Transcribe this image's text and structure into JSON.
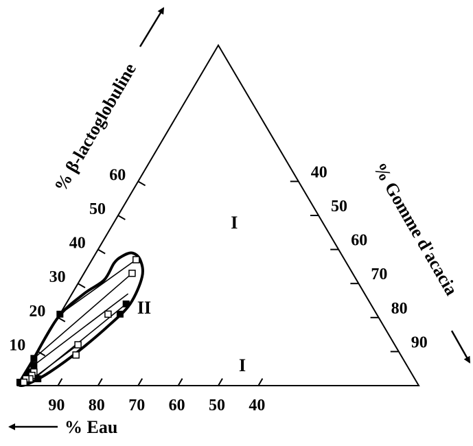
{
  "chart_data": {
    "type": "ternary",
    "axes": {
      "left": {
        "label": "% β-lactoglobuline",
        "ticks": [
          {
            "value": 10,
            "label": "10"
          },
          {
            "value": 20,
            "label": "20"
          },
          {
            "value": 30,
            "label": "30"
          },
          {
            "value": 40,
            "label": "40"
          },
          {
            "value": 50,
            "label": "50"
          },
          {
            "value": 60,
            "label": "60"
          }
        ]
      },
      "right": {
        "label": "% Gomme d'acacia",
        "ticks": [
          {
            "value": 40,
            "label": "40"
          },
          {
            "value": 50,
            "label": "50"
          },
          {
            "value": 60,
            "label": "60"
          },
          {
            "value": 70,
            "label": "70"
          },
          {
            "value": 80,
            "label": "80"
          },
          {
            "value": 90,
            "label": "90"
          }
        ]
      },
      "bottom": {
        "label": "% Eau",
        "ticks": [
          {
            "value": 90,
            "label": "90"
          },
          {
            "value": 80,
            "label": "80"
          },
          {
            "value": 70,
            "label": "70"
          },
          {
            "value": 60,
            "label": "60"
          },
          {
            "value": 50,
            "label": "50"
          },
          {
            "value": 40,
            "label": "40"
          }
        ]
      }
    },
    "regions": [
      {
        "label": "I",
        "lactoglobuline": 48,
        "gomme": 30
      },
      {
        "label": "II",
        "lactoglobuline": 23,
        "gomme": 20
      },
      {
        "label": "I",
        "lactoglobuline": 6,
        "gomme": 53
      }
    ],
    "boundary": [
      {
        "eau": 99,
        "lactoglobuline": 1,
        "gomme": 0
      },
      {
        "eau": 93,
        "lactoglobuline": 7,
        "gomme": 0
      },
      {
        "eau": 80,
        "lactoglobuline": 20,
        "gomme": 0
      },
      {
        "eau": 70,
        "lactoglobuline": 27,
        "gomme": 3
      },
      {
        "eau": 63,
        "lactoglobuline": 31,
        "gomme": 6
      },
      {
        "eau": 58,
        "lactoglobuline": 36,
        "gomme": 6
      },
      {
        "eau": 55,
        "lactoglobuline": 38,
        "gomme": 7
      },
      {
        "eau": 52,
        "lactoglobuline": 39,
        "gomme": 9
      },
      {
        "eau": 51,
        "lactoglobuline": 37,
        "gomme": 12
      },
      {
        "eau": 53,
        "lactoglobuline": 32,
        "gomme": 15
      },
      {
        "eau": 60,
        "lactoglobuline": 24,
        "gomme": 16
      },
      {
        "eau": 68,
        "lactoglobuline": 18,
        "gomme": 14
      },
      {
        "eau": 80,
        "lactoglobuline": 10,
        "gomme": 10
      },
      {
        "eau": 90,
        "lactoglobuline": 4,
        "gomme": 6
      },
      {
        "eau": 96,
        "lactoglobuline": 1,
        "gomme": 3
      },
      {
        "eau": 99,
        "lactoglobuline": 0,
        "gomme": 1
      }
    ],
    "tie_lines": [
      {
        "a": {
          "eau": 79,
          "lactoglobuline": 21,
          "gomme": 0
        },
        "b": {
          "eau": 52,
          "lactoglobuline": 37,
          "gomme": 11
        }
      },
      {
        "a": {
          "eau": 92,
          "lactoglobuline": 8,
          "gomme": 0
        },
        "b": {
          "eau": 55,
          "lactoglobuline": 33,
          "gomme": 12
        }
      },
      {
        "a": {
          "eau": 93,
          "lactoglobuline": 6,
          "gomme": 1
        },
        "b": {
          "eau": 59,
          "lactoglobuline": 27,
          "gomme": 14
        }
      },
      {
        "a": {
          "eau": 95,
          "lactoglobuline": 2,
          "gomme": 3
        },
        "b": {
          "eau": 61,
          "lactoglobuline": 24,
          "gomme": 15
        }
      },
      {
        "a": {
          "eau": 97,
          "lactoglobuline": 1,
          "gomme": 2
        },
        "b": {
          "eau": 79,
          "lactoglobuline": 12,
          "gomme": 9
        }
      },
      {
        "a": {
          "eau": 96,
          "lactoglobuline": 1,
          "gomme": 3
        },
        "b": {
          "eau": 81,
          "lactoglobuline": 9,
          "gomme": 10
        }
      }
    ],
    "points_filled": [
      {
        "eau": 79,
        "lactoglobuline": 21,
        "gomme": 0
      },
      {
        "eau": 92,
        "lactoglobuline": 8,
        "gomme": 0
      },
      {
        "eau": 93,
        "lactoglobuline": 6,
        "gomme": 1
      },
      {
        "eau": 61,
        "lactoglobuline": 24,
        "gomme": 15
      },
      {
        "eau": 64,
        "lactoglobuline": 21,
        "gomme": 15
      },
      {
        "eau": 94,
        "lactoglobuline": 2,
        "gomme": 4
      },
      {
        "eau": 95,
        "lactoglobuline": 4,
        "gomme": 1
      },
      {
        "eau": 96,
        "lactoglobuline": 3,
        "gomme": 1
      },
      {
        "eau": 97,
        "lactoglobuline": 2,
        "gomme": 1
      },
      {
        "eau": 98,
        "lactoglobuline": 1,
        "gomme": 1
      },
      {
        "eau": 99,
        "lactoglobuline": 1,
        "gomme": 0
      }
    ],
    "points_open": [
      {
        "eau": 52,
        "lactoglobuline": 37,
        "gomme": 11
      },
      {
        "eau": 55,
        "lactoglobuline": 33,
        "gomme": 12
      },
      {
        "eau": 67,
        "lactoglobuline": 21,
        "gomme": 12
      },
      {
        "eau": 79,
        "lactoglobuline": 12,
        "gomme": 9
      },
      {
        "eau": 81,
        "lactoglobuline": 9,
        "gomme": 10
      },
      {
        "eau": 94,
        "lactoglobuline": 4,
        "gomme": 2
      },
      {
        "eau": 95,
        "lactoglobuline": 3,
        "gomme": 2
      },
      {
        "eau": 96,
        "lactoglobuline": 2,
        "gomme": 2
      },
      {
        "eau": 97,
        "lactoglobuline": 2,
        "gomme": 1
      },
      {
        "eau": 98,
        "lactoglobuline": 1,
        "gomme": 1
      }
    ],
    "grid": false
  }
}
